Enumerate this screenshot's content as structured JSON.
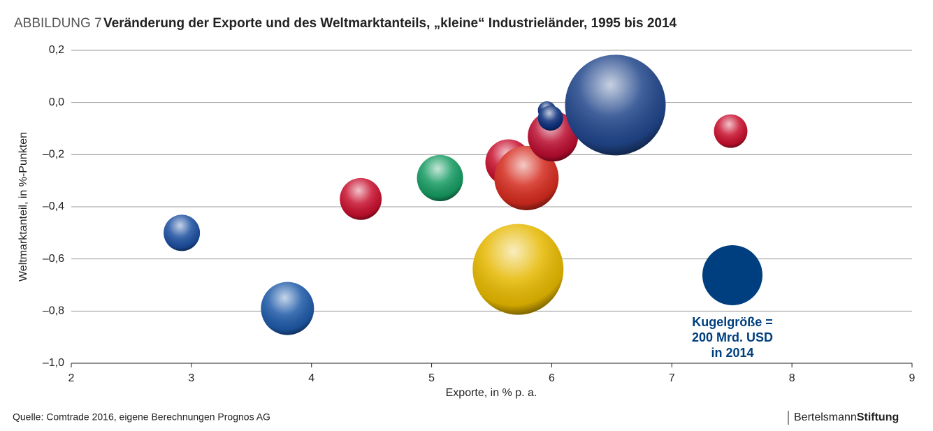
{
  "chart_data": {
    "type": "bubble",
    "figure_label": "ABBILDUNG 7",
    "title": "Veränderung der Exporte und des Weltmarktanteils, „kleine“ Industrieländer, 1995 bis 2014",
    "xlabel": "Exporte, in % p. a.",
    "ylabel": "Weltmarktanteil, in %-Punkten",
    "x": [
      2.92,
      3.8,
      4.41,
      5.07,
      5.64,
      5.79,
      5.72,
      6.01,
      5.96,
      5.99,
      6.53,
      7.49
    ],
    "values": [
      -0.5,
      -0.79,
      -0.37,
      -0.29,
      -0.23,
      -0.29,
      -0.64,
      -0.13,
      -0.03,
      -0.06,
      -0.01,
      -0.11
    ],
    "sizes": [
      73,
      156,
      97,
      118,
      118,
      229,
      457,
      140,
      18,
      35,
      561,
      62
    ],
    "colors": [
      "#1c4fa0",
      "#1e5aa8",
      "#c8102e",
      "#169b62",
      "#c8102e",
      "#d52b1e",
      "#e6b800",
      "#ba0c2f",
      "#0a2d7a",
      "#0a2d7a",
      "#21468b",
      "#c8102e"
    ],
    "size_legend": {
      "value": 200,
      "color": "#003f7f",
      "label_lines": [
        "Kugelgröße =",
        "200 Mrd. USD",
        "in 2014"
      ]
    },
    "xlim": [
      2,
      9
    ],
    "xticks": [
      2,
      3,
      4,
      5,
      6,
      7,
      8,
      9
    ],
    "ylim": [
      -1.0,
      0.2
    ],
    "yticks": [
      {
        "value": 0.2,
        "label": "0,2"
      },
      {
        "value": 0.0,
        "label": "0,0"
      },
      {
        "value": -0.2,
        "label": "–0,2"
      },
      {
        "value": -0.4,
        "label": "–0,4"
      },
      {
        "value": -0.6,
        "label": "–0,6"
      },
      {
        "value": -0.8,
        "label": "–0,8"
      },
      {
        "value": -1.0,
        "label": "–1,0"
      }
    ],
    "grid": true,
    "source": "Quelle: Comtrade 2016, eigene Berechnungen Prognos AG",
    "brand": [
      "Bertelsmann",
      "Stiftung"
    ]
  }
}
